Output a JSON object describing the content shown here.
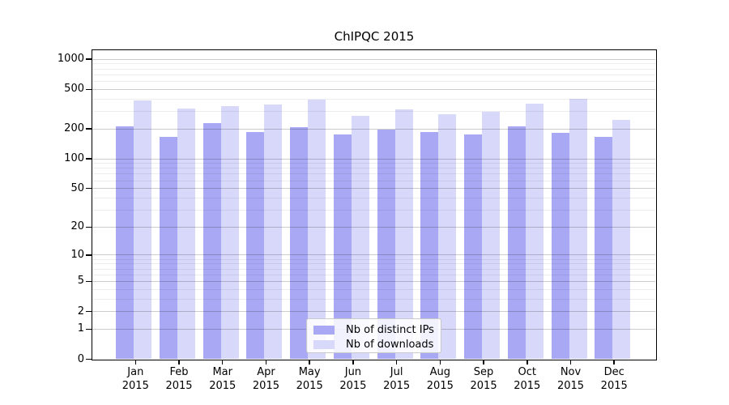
{
  "title": "ChIPQC 2015",
  "chart_data": {
    "type": "bar",
    "title": "ChIPQC 2015",
    "categories": [
      "Jan 2015",
      "Feb 2015",
      "Mar 2015",
      "Apr 2015",
      "May 2015",
      "Jun 2015",
      "Jul 2015",
      "Aug 2015",
      "Sep 2015",
      "Oct 2015",
      "Nov 2015",
      "Dec 2015"
    ],
    "series": [
      {
        "name": "Nb of distinct IPs",
        "color": "#a8a8f4",
        "values": [
          210,
          165,
          225,
          185,
          205,
          175,
          195,
          185,
          175,
          210,
          180,
          165
        ]
      },
      {
        "name": "Nb of downloads",
        "color": "#d8d8fa",
        "values": [
          380,
          315,
          335,
          350,
          390,
          270,
          310,
          280,
          295,
          355,
          400,
          245
        ]
      }
    ],
    "xlabel": "",
    "ylabel": "",
    "yscale": "log1p",
    "ylim": [
      0,
      1220
    ],
    "y_ticks": [
      0,
      1,
      2,
      5,
      10,
      20,
      50,
      100,
      200,
      500,
      1000
    ],
    "y_minor_ticks": [
      3,
      4,
      6,
      7,
      8,
      9,
      30,
      40,
      60,
      70,
      80,
      90,
      300,
      400,
      600,
      700,
      800,
      900
    ],
    "grid": "on",
    "legend_position": "lower center"
  }
}
